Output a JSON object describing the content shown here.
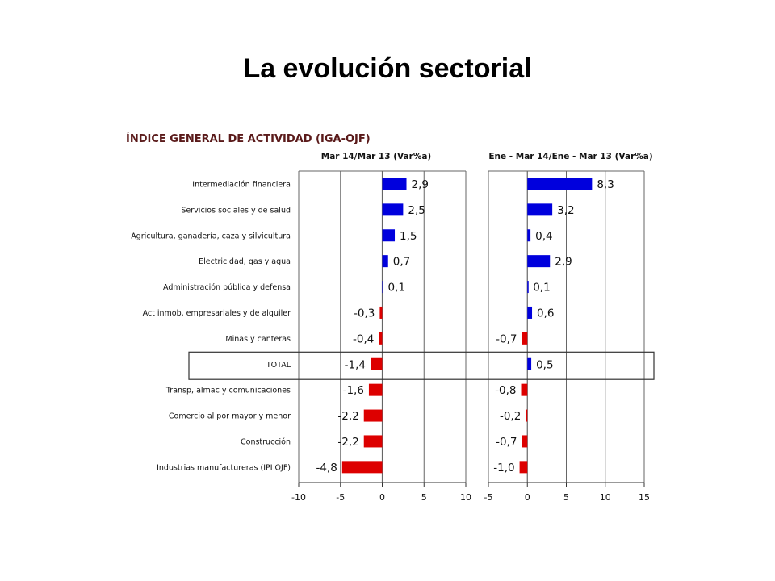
{
  "slide": {
    "title": "La evolución sectorial"
  },
  "colors": {
    "positive": "#0000dd",
    "negative": "#dd0000",
    "heading": "#5a1a1a",
    "grid": "#666666"
  },
  "chart_data": {
    "type": "bar",
    "orientation": "horizontal",
    "heading": "ÍNDICE GENERAL DE ACTIVIDAD (IGA-OJF)",
    "categories": [
      "Intermediación financiera",
      "Servicios sociales y de salud",
      "Agricultura, ganadería, caza y silvicultura",
      "Electricidad, gas y agua",
      "Administración pública y defensa",
      "Act inmob, empresariales y de alquiler",
      "Minas y canteras",
      "TOTAL",
      "Transp, almac y comunicaciones",
      "Comercio al por mayor y menor",
      "Construcción",
      "Industrias manufactureras (IPI OJF)"
    ],
    "highlight_category": "TOTAL",
    "panels": [
      {
        "subtitle": "Mar 14/Mar 13 (Var%a)",
        "values": [
          2.9,
          2.5,
          1.5,
          0.7,
          0.1,
          -0.3,
          -0.4,
          -1.4,
          -1.6,
          -2.2,
          -2.2,
          -4.8
        ],
        "labels": [
          "2,9",
          "2,5",
          "1,5",
          "0,7",
          "0,1",
          "-0,3",
          "-0,4",
          "-1,4",
          "-1,6",
          "-2,2",
          "-2,2",
          "-4,8"
        ],
        "xlim": [
          -10,
          10
        ],
        "ticks": [
          -10,
          -5,
          0,
          5,
          10
        ],
        "tick_labels": [
          "-10",
          "-5",
          "0",
          "5",
          "10"
        ]
      },
      {
        "subtitle": "Ene - Mar 14/Ene - Mar 13 (Var%a)",
        "values": [
          8.3,
          3.2,
          0.4,
          2.9,
          0.1,
          0.6,
          -0.7,
          0.5,
          -0.8,
          -0.2,
          -0.7,
          -1.0
        ],
        "labels": [
          "8,3",
          "3,2",
          "0,4",
          "2,9",
          "0,1",
          "0,6",
          "-0,7",
          "0,5",
          "-0,8",
          "-0,2",
          "-0,7",
          "-1,0"
        ],
        "xlim": [
          -5,
          15
        ],
        "ticks": [
          -5,
          0,
          5,
          10,
          15
        ],
        "tick_labels": [
          "-5",
          "0",
          "5",
          "10",
          "15"
        ]
      }
    ]
  }
}
